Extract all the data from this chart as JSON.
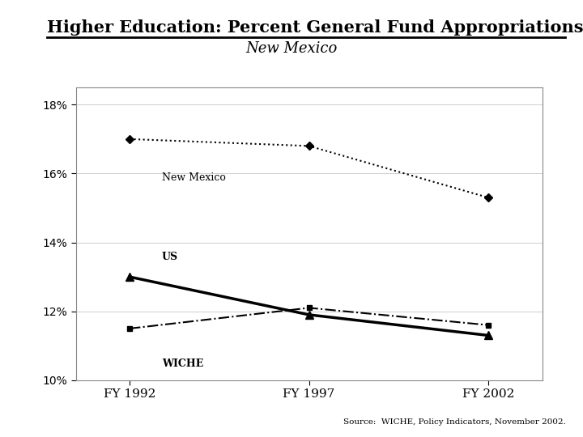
{
  "title_main": "Higher Education: Percent General Fund Appropriations",
  "title_sub": "New Mexico",
  "x_labels": [
    "FY 1992",
    "FY 1997",
    "FY 2002"
  ],
  "x_values": [
    0,
    1,
    2
  ],
  "new_mexico": [
    0.17,
    0.168,
    0.153
  ],
  "us": [
    0.13,
    0.119,
    0.113
  ],
  "wiche": [
    0.115,
    0.121,
    0.116
  ],
  "ylim": [
    0.1,
    0.185
  ],
  "yticks": [
    0.1,
    0.12,
    0.14,
    0.16,
    0.18
  ],
  "source": "Source:  WICHE, Policy Indicators, November 2002.",
  "bg_color": "#ffffff",
  "label_nm": "New Mexico",
  "label_us": "US",
  "label_wiche": "WICHE"
}
